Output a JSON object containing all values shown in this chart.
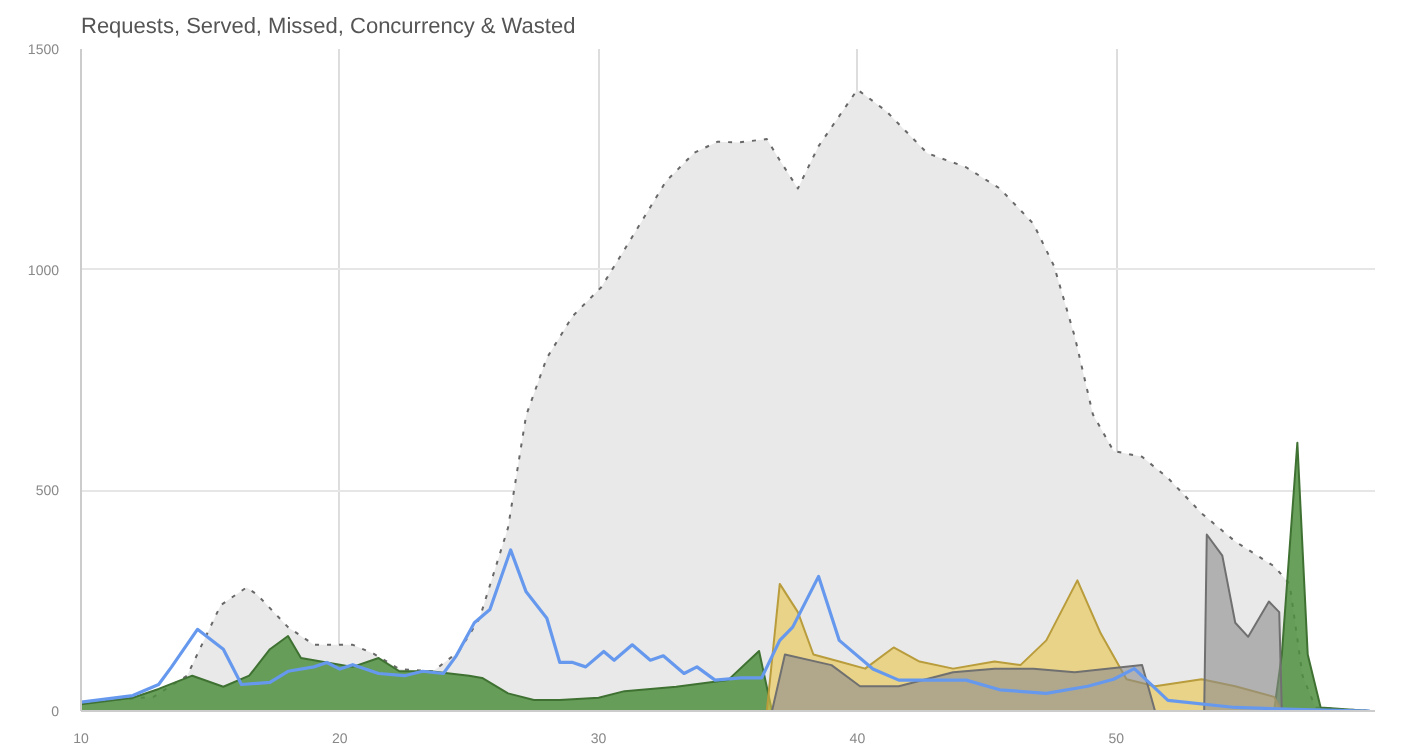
{
  "chart_data": {
    "type": "area",
    "title": "Requests, Served, Missed, Concurrency & Wasted",
    "xlim": [
      10,
      60
    ],
    "ylim": [
      0,
      1500
    ],
    "xticks": [
      10,
      20,
      30,
      40,
      50
    ],
    "yticks": [
      0,
      500,
      1000,
      1500
    ],
    "grid": true,
    "series": [
      {
        "color": "#e9e9e9",
        "line_style": "dotted",
        "x": [
          10,
          12.8,
          14.1,
          15.4,
          16.4,
          16.8,
          18,
          19,
          20.5,
          21.3,
          22.3,
          23.6,
          24.6,
          25.4,
          26.5,
          27.2,
          28,
          29,
          30.1,
          31.1,
          32.6,
          33.7,
          34.6,
          35.4,
          36.5,
          37,
          37.7,
          38.5,
          40,
          41.1,
          42.7,
          44.2,
          45.5,
          46.8,
          47.6,
          48.4,
          49.1,
          49.9,
          51,
          52,
          53.3,
          54.6,
          56.1,
          56.7,
          57.2,
          57.7,
          59.8
        ],
        "values": [
          20,
          32,
          80,
          240,
          280,
          264,
          190,
          150,
          150,
          130,
          95,
          90,
          135,
          210,
          415,
          670,
          800,
          895,
          960,
          1055,
          1200,
          1265,
          1290,
          1288,
          1296,
          1248,
          1184,
          1280,
          1408,
          1360,
          1264,
          1232,
          1184,
          1104,
          1008,
          848,
          672,
          589,
          576,
          528,
          448,
          384,
          328,
          288,
          80,
          8,
          0
        ]
      },
      {
        "color": "#4f8f3f",
        "x": [
          10,
          12,
          13,
          14.3,
          15.5,
          16.5,
          17.3,
          18,
          18.5,
          19.5,
          20.5,
          21.5,
          22.3,
          23.5,
          25,
          25.5,
          26.5,
          27.5,
          28.5,
          30,
          31,
          33,
          35,
          36.2,
          36.7,
          56.1,
          56.4,
          57,
          57.4,
          57.9,
          59.8
        ],
        "values": [
          15,
          30,
          50,
          80,
          55,
          80,
          140,
          170,
          120,
          110,
          100,
          120,
          90,
          90,
          80,
          75,
          40,
          25,
          25,
          30,
          45,
          55,
          70,
          136,
          0,
          0,
          128,
          608,
          128,
          8,
          0
        ]
      },
      {
        "color": "#e8c44a",
        "x": [
          36.5,
          37,
          37.7,
          38.3,
          39.3,
          40.3,
          41.4,
          42.4,
          43.7,
          45.3,
          46.3,
          47.3,
          48.5,
          49.4,
          50.4,
          51.5,
          53.3,
          54.6,
          56.1,
          56.4
        ],
        "values": [
          0,
          288,
          224,
          128,
          112,
          96,
          144,
          112,
          96,
          112,
          104,
          160,
          296,
          176,
          72,
          56,
          72,
          56,
          32,
          0
        ]
      },
      {
        "color": "#8c8c8c",
        "x": [
          36.7,
          37.2,
          39,
          40.1,
          41.6,
          43.7,
          45.3,
          46.8,
          48.4,
          51,
          51.5,
          53.4,
          53.5,
          54.1,
          54.6,
          55.1,
          55.9,
          56.3,
          56.4
        ],
        "values": [
          0,
          128,
          104,
          56,
          56,
          88,
          96,
          96,
          88,
          104,
          0,
          0,
          400,
          352,
          200,
          168,
          248,
          224,
          0
        ]
      },
      {
        "type": "line",
        "color": "#6699ee",
        "x": [
          10,
          12,
          13,
          13.5,
          14.5,
          15.5,
          16.2,
          17.3,
          18,
          19,
          19.5,
          20,
          20.5,
          21.5,
          22.5,
          23.2,
          24,
          24.5,
          25.2,
          25.8,
          26.6,
          27.2,
          28,
          28.5,
          29,
          29.5,
          30.2,
          30.6,
          31.3,
          32,
          32.5,
          33.3,
          33.8,
          34.5,
          35.5,
          36.3,
          37,
          37.5,
          38.5,
          39.3,
          40.6,
          41.6,
          44.2,
          45.5,
          47.3,
          48.9,
          49.9,
          50.7,
          52,
          54.6,
          57.2,
          59.8
        ],
        "values": [
          20,
          35,
          60,
          100,
          185,
          140,
          60,
          65,
          90,
          100,
          110,
          95,
          105,
          85,
          80,
          90,
          85,
          125,
          200,
          230,
          365,
          270,
          210,
          110,
          110,
          100,
          135,
          115,
          150,
          115,
          125,
          85,
          100,
          70,
          75,
          75,
          160,
          190,
          305,
          160,
          95,
          70,
          70,
          48,
          40,
          56,
          72,
          96,
          24,
          8,
          3,
          0
        ]
      }
    ]
  }
}
